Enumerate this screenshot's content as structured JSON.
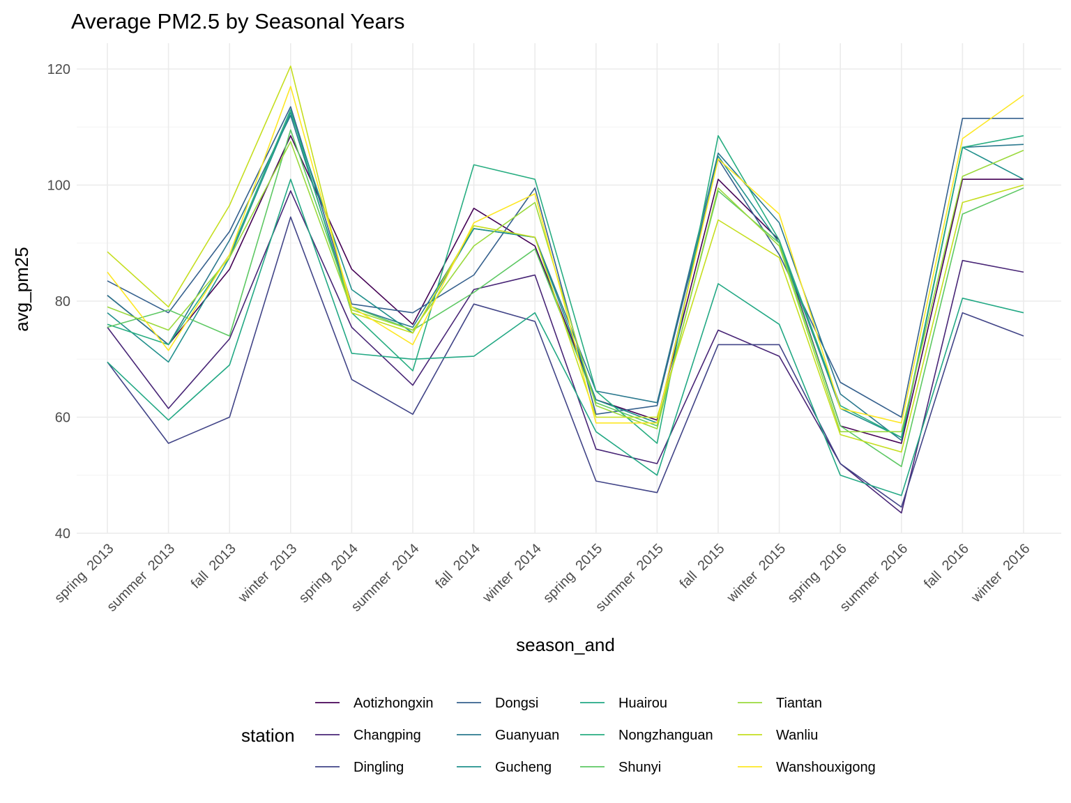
{
  "chart_data": {
    "type": "line",
    "title": "Average PM2.5 by Seasonal Years",
    "xlabel": "season_and",
    "ylabel": "avg_pm25",
    "ylim": [
      40,
      124
    ],
    "y_ticks": [
      40,
      60,
      80,
      100,
      120
    ],
    "grid": true,
    "legend_title": "station",
    "legend_position": "bottom",
    "categories": [
      "spring  2013",
      "summer  2013",
      "fall  2013",
      "winter  2013",
      "spring  2014",
      "summer  2014",
      "fall  2014",
      "winter  2014",
      "spring  2015",
      "summer  2015",
      "fall  2015",
      "winter  2015",
      "spring  2016",
      "summer  2016",
      "fall  2016",
      "winter  2016"
    ],
    "series": [
      {
        "name": "Aotizhongxin",
        "color": "#440154",
        "values": [
          81.0,
          72.5,
          85.5,
          108.5,
          85.5,
          76.0,
          96.0,
          89.5,
          63.0,
          59.5,
          101.0,
          90.5,
          58.5,
          55.5,
          101.0,
          101.0
        ]
      },
      {
        "name": "Changping",
        "color": "#482576",
        "values": [
          75.5,
          61.5,
          73.5,
          99.0,
          75.5,
          65.5,
          82.0,
          84.5,
          54.5,
          52.0,
          75.0,
          70.5,
          52.0,
          43.5,
          87.0,
          85.0
        ]
      },
      {
        "name": "Dingling",
        "color": "#414487",
        "values": [
          69.5,
          55.5,
          60.0,
          94.5,
          66.5,
          60.5,
          79.5,
          76.5,
          49.0,
          47.0,
          72.5,
          72.5,
          52.0,
          44.5,
          78.0,
          74.0
        ]
      },
      {
        "name": "Dongsi",
        "color": "#35608D",
        "values": [
          83.5,
          78.0,
          92.0,
          113.5,
          79.5,
          78.0,
          84.5,
          99.5,
          60.5,
          62.0,
          104.5,
          88.0,
          66.0,
          60.0,
          111.5,
          111.5
        ]
      },
      {
        "name": "Guanyuan",
        "color": "#2A788E",
        "values": [
          81.0,
          72.5,
          90.5,
          112.0,
          79.0,
          75.5,
          92.5,
          91.0,
          64.5,
          62.5,
          105.5,
          93.5,
          64.0,
          56.0,
          106.5,
          107.0
        ]
      },
      {
        "name": "Gucheng",
        "color": "#21908C",
        "values": [
          78.0,
          69.5,
          87.5,
          112.5,
          82.0,
          74.5,
          92.5,
          91.0,
          63.0,
          59.0,
          105.0,
          90.0,
          61.5,
          56.5,
          106.5,
          101.0
        ]
      },
      {
        "name": "Huairou",
        "color": "#22A884",
        "values": [
          69.5,
          59.5,
          69.0,
          101.0,
          71.0,
          70.0,
          70.5,
          78.0,
          57.5,
          50.0,
          83.0,
          76.0,
          50.0,
          46.5,
          80.5,
          78.0
        ]
      },
      {
        "name": "Nongzhanguan",
        "color": "#27AD81",
        "values": [
          76.0,
          72.5,
          88.0,
          113.0,
          78.0,
          68.0,
          103.5,
          101.0,
          64.5,
          55.5,
          108.5,
          90.5,
          62.0,
          56.5,
          106.5,
          108.5
        ]
      },
      {
        "name": "Shunyi",
        "color": "#5DC863",
        "values": [
          75.5,
          78.5,
          74.0,
          109.5,
          79.0,
          75.0,
          81.5,
          89.0,
          62.5,
          58.5,
          99.0,
          90.0,
          58.5,
          51.5,
          95.0,
          99.5
        ]
      },
      {
        "name": "Tiantan",
        "color": "#9AD93C",
        "values": [
          79.0,
          75.0,
          87.5,
          107.5,
          78.5,
          75.0,
          89.5,
          97.0,
          62.0,
          58.0,
          99.5,
          89.5,
          57.5,
          57.5,
          101.5,
          106.0
        ]
      },
      {
        "name": "Wanliu",
        "color": "#C5DE1F",
        "values": [
          88.5,
          79.0,
          96.5,
          120.5,
          78.0,
          74.5,
          93.0,
          91.0,
          60.0,
          60.0,
          94.0,
          87.5,
          57.0,
          54.0,
          97.0,
          100.0
        ]
      },
      {
        "name": "Wanshouxigong",
        "color": "#FDE725",
        "values": [
          85.0,
          71.5,
          88.0,
          117.0,
          79.0,
          72.5,
          93.5,
          98.5,
          59.0,
          59.0,
          104.5,
          95.0,
          61.5,
          59.0,
          108.0,
          115.5
        ]
      }
    ]
  }
}
